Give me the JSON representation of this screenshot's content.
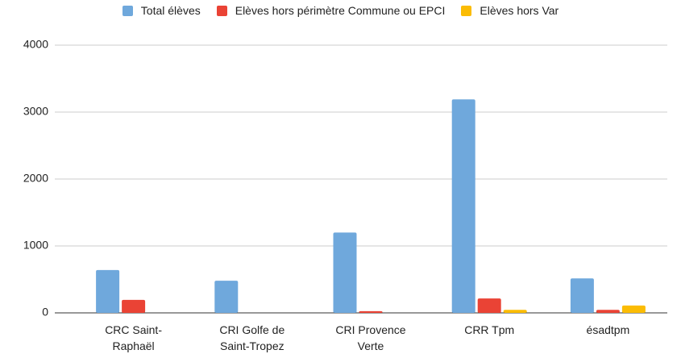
{
  "chart_data": {
    "type": "bar",
    "categories": [
      "CRC Saint-Raphaël",
      "CRI Golfe de Saint-Tropez",
      "CRI Provence Verte",
      "CRR Tpm",
      "ésadtpm"
    ],
    "series": [
      {
        "name": "Total élèves",
        "color": "#6fa8dc",
        "values": [
          640,
          480,
          1200,
          3190,
          515
        ]
      },
      {
        "name": "Elèves hors périmètre Commune ou EPCI",
        "color": "#ea4335",
        "values": [
          195,
          0,
          25,
          215,
          45
        ]
      },
      {
        "name": "Elèves hors Var",
        "color": "#fbbc04",
        "values": [
          0,
          0,
          0,
          45,
          110
        ]
      }
    ],
    "ylim": [
      0,
      4000
    ],
    "yticks": [
      0,
      1000,
      2000,
      3000,
      4000
    ],
    "grid": true,
    "legend": "top"
  }
}
